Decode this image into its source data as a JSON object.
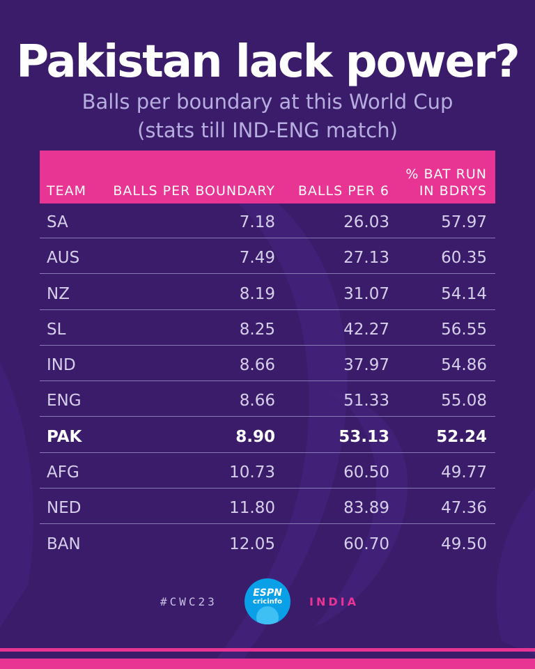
{
  "title": "Pakistan lack power?",
  "subtitle_line1": "Balls per boundary at this World Cup",
  "subtitle_line2": "(stats till IND-ENG match)",
  "colors": {
    "background": "#3b1c6b",
    "header": "#e83593",
    "highlight_text": "#ffffff",
    "accent": "#e83593"
  },
  "chart_data": {
    "type": "table",
    "columns": [
      "TEAM",
      "BALLS PER BOUNDARY",
      "BALLS PER 6",
      "% BAT RUN IN BDRYS"
    ],
    "column_header_lines": {
      "team": "TEAM",
      "bpb": "BALLS PER BOUNDARY",
      "bp6": "BALLS PER 6",
      "pct_line1": "% BAT RUN",
      "pct_line2": "IN BDRYS"
    },
    "rows": [
      {
        "team": "SA",
        "bpb": "7.18",
        "bp6": "26.03",
        "pct": "57.97",
        "highlight": false
      },
      {
        "team": "AUS",
        "bpb": "7.49",
        "bp6": "27.13",
        "pct": "60.35",
        "highlight": false
      },
      {
        "team": "NZ",
        "bpb": "8.19",
        "bp6": "31.07",
        "pct": "54.14",
        "highlight": false
      },
      {
        "team": "SL",
        "bpb": "8.25",
        "bp6": "42.27",
        "pct": "56.55",
        "highlight": false
      },
      {
        "team": "IND",
        "bpb": "8.66",
        "bp6": "37.97",
        "pct": "54.86",
        "highlight": false
      },
      {
        "team": "ENG",
        "bpb": "8.66",
        "bp6": "51.33",
        "pct": "55.08",
        "highlight": false
      },
      {
        "team": "PAK",
        "bpb": "8.90",
        "bp6": "53.13",
        "pct": "52.24",
        "highlight": true
      },
      {
        "team": "AFG",
        "bpb": "10.73",
        "bp6": "60.50",
        "pct": "49.77",
        "highlight": false
      },
      {
        "team": "NED",
        "bpb": "11.80",
        "bp6": "83.89",
        "pct": "47.36",
        "highlight": false
      },
      {
        "team": "BAN",
        "bpb": "12.05",
        "bp6": "60.70",
        "pct": "49.50",
        "highlight": false
      }
    ]
  },
  "footer": {
    "hashtag": "#CWC23",
    "country": "INDIA",
    "logo_line1": "ESPN",
    "logo_line2": "cricinfo",
    "logo_icon": "cricket-ball-icon"
  }
}
